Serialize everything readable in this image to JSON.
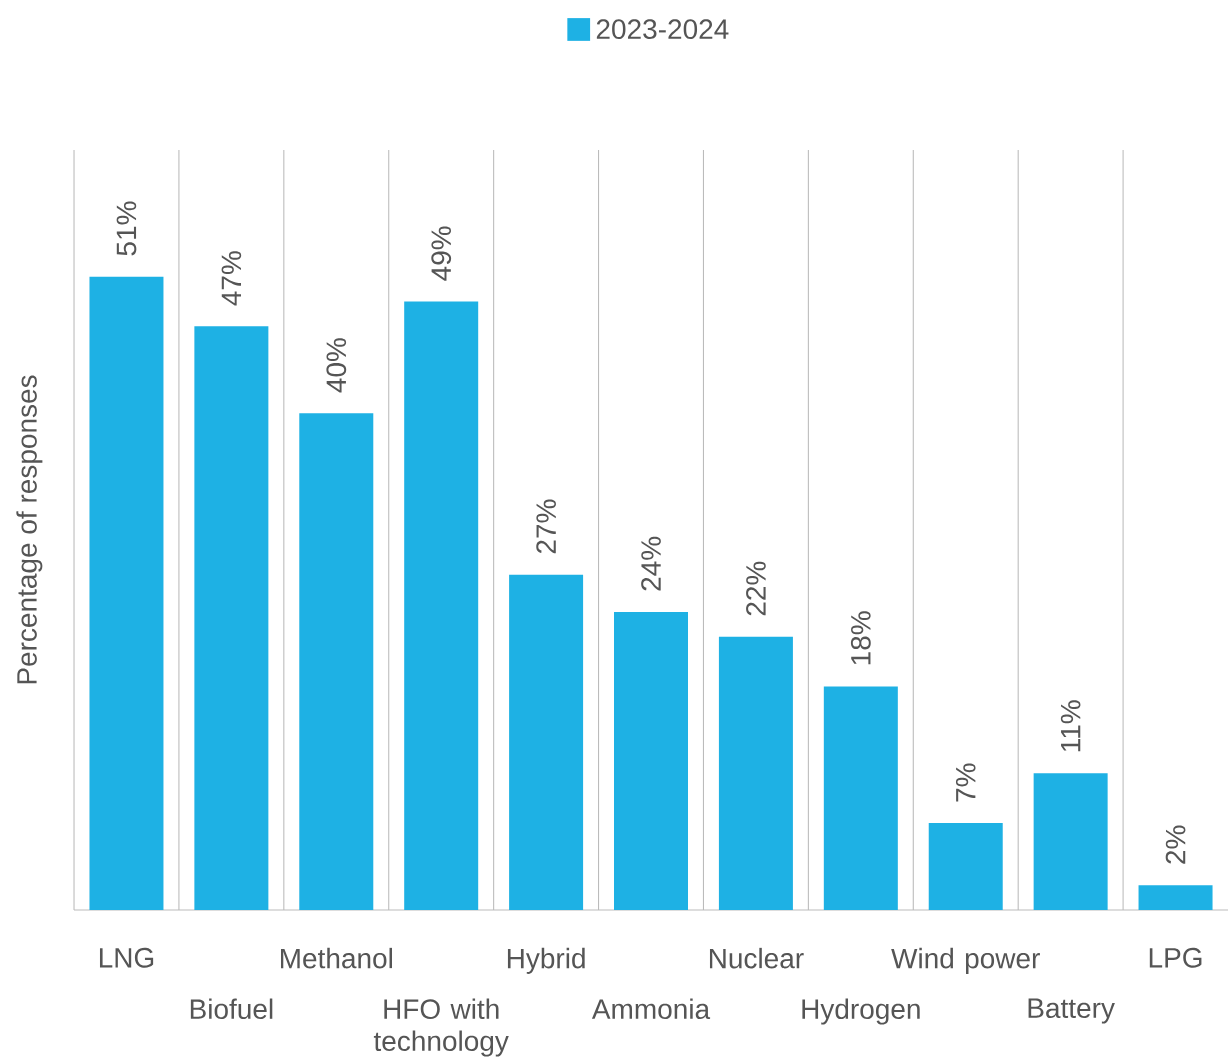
{
  "chart_data": {
    "type": "bar",
    "categories": [
      "LNG",
      "Biofuel",
      "Methanol",
      "HFO with technology",
      "Hybrid",
      "Ammonia",
      "Nuclear",
      "Hydrogen",
      "Wind power",
      "Battery",
      "LPG"
    ],
    "series": [
      {
        "name": "2023-2024",
        "color": "#1eb1e4",
        "values": [
          51,
          47,
          40,
          49,
          27,
          24,
          22,
          18,
          7,
          11,
          2
        ],
        "value_labels": [
          "51%",
          "47%",
          "40%",
          "49%",
          "27%",
          "24%",
          "22%",
          "18%",
          "7%",
          "11%",
          "2%"
        ]
      }
    ],
    "ylabel": "Percentage of responses",
    "grid": "x",
    "legend": "top",
    "tick_labels": "x"
  }
}
